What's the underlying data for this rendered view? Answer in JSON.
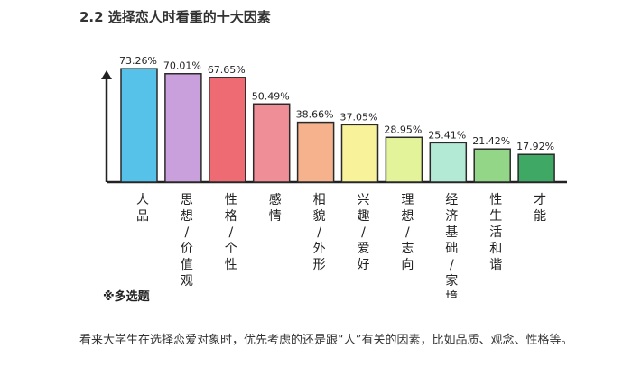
{
  "section": {
    "title": "2.2 选择恋人时看重的十大因素"
  },
  "chart_data": {
    "type": "bar",
    "categories": [
      "人品",
      "思想/价值观",
      "性格/个性",
      "感情",
      "相貌/外形",
      "兴趣/爱好",
      "理想/志向",
      "经济基础/家境",
      "性生活和谐",
      "才能"
    ],
    "values": [
      73.26,
      70.01,
      67.65,
      50.49,
      38.66,
      37.05,
      28.95,
      25.41,
      21.42,
      17.92
    ],
    "value_labels": [
      "73.26%",
      "70.01%",
      "67.65%",
      "50.49%",
      "38.66%",
      "37.05%",
      "28.95%",
      "25.41%",
      "21.42%",
      "17.92%"
    ],
    "colors": [
      "#56c2ea",
      "#c9a0dc",
      "#ee6b74",
      "#f08e98",
      "#f5b28c",
      "#f8f39a",
      "#e2f39a",
      "#b3ead6",
      "#93d688",
      "#3fa864"
    ],
    "outline_color": "#2a2a2a",
    "ylim": [
      0,
      85
    ],
    "grid": false,
    "legend": "none"
  },
  "note": "※多选题",
  "caption": "看来大学生在选择恋爱对象时，优先考虑的还是跟“人”有关的因素，比如品质、观念、性格等。"
}
